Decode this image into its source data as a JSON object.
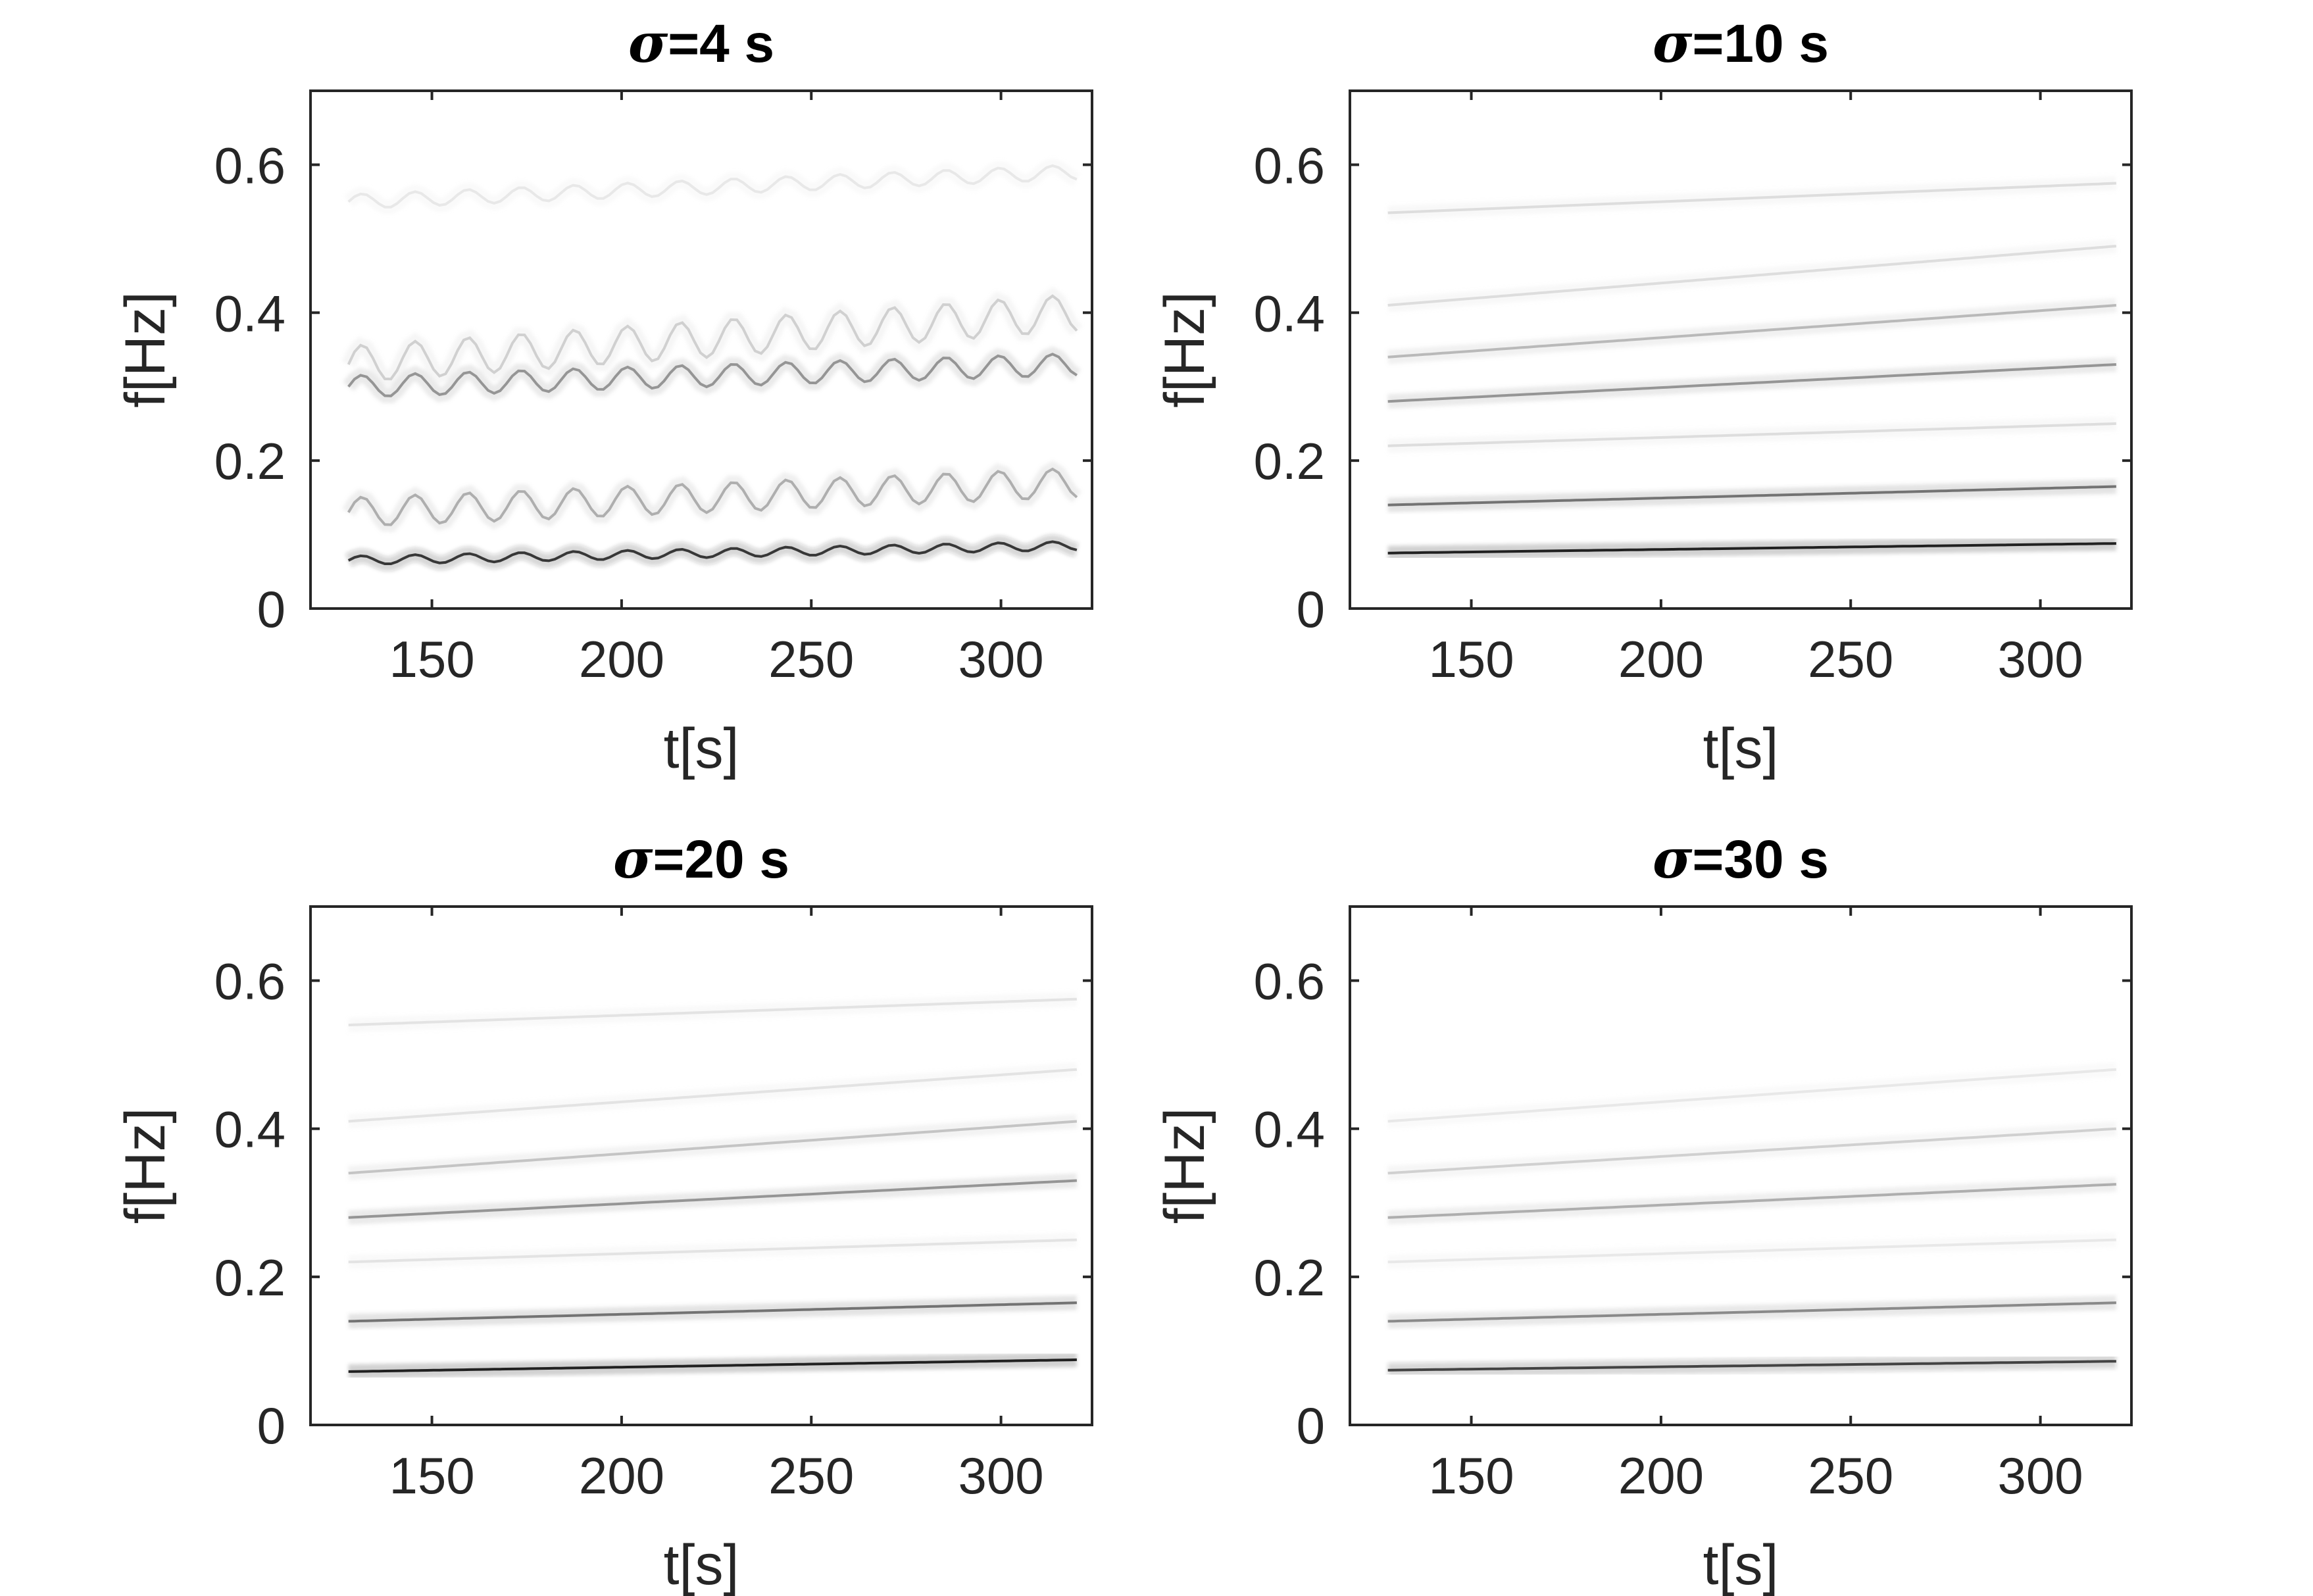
{
  "chart_data": [
    {
      "type": "heatmap",
      "title_symbol": "σ",
      "title_rest": "=4 s",
      "xlabel": "t[s]",
      "ylabel": "f[Hz]",
      "xlim": [
        118,
        324
      ],
      "ylim": [
        0,
        0.7
      ],
      "xticks": [
        "150",
        "200",
        "250",
        "300"
      ],
      "yticks": [
        "0",
        "0.2",
        "0.4",
        "0.6"
      ],
      "colormap": "inverted-gray",
      "ridges": [
        {
          "f_start": 0.065,
          "f_end": 0.085,
          "intensity": 0.85,
          "ripple": 0.006
        },
        {
          "f_start": 0.13,
          "f_end": 0.17,
          "intensity": 0.35,
          "ripple": 0.02
        },
        {
          "f_start": 0.3,
          "f_end": 0.33,
          "intensity": 0.45,
          "ripple": 0.015
        },
        {
          "f_start": 0.33,
          "f_end": 0.4,
          "intensity": 0.2,
          "ripple": 0.025
        },
        {
          "f_start": 0.55,
          "f_end": 0.59,
          "intensity": 0.1,
          "ripple": 0.01
        }
      ]
    },
    {
      "type": "heatmap",
      "title_symbol": "σ",
      "title_rest": "=10 s",
      "xlabel": "t[s]",
      "ylabel": "f[Hz]",
      "xlim": [
        118,
        324
      ],
      "ylim": [
        0,
        0.7
      ],
      "xticks": [
        "150",
        "200",
        "250",
        "300"
      ],
      "yticks": [
        "0",
        "0.2",
        "0.4",
        "0.6"
      ],
      "colormap": "inverted-gray",
      "ridges": [
        {
          "f_start": 0.075,
          "f_end": 0.088,
          "intensity": 0.95,
          "ripple": 0
        },
        {
          "f_start": 0.14,
          "f_end": 0.165,
          "intensity": 0.6,
          "ripple": 0
        },
        {
          "f_start": 0.22,
          "f_end": 0.25,
          "intensity": 0.15,
          "ripple": 0
        },
        {
          "f_start": 0.28,
          "f_end": 0.33,
          "intensity": 0.45,
          "ripple": 0
        },
        {
          "f_start": 0.34,
          "f_end": 0.41,
          "intensity": 0.3,
          "ripple": 0
        },
        {
          "f_start": 0.41,
          "f_end": 0.49,
          "intensity": 0.15,
          "ripple": 0
        },
        {
          "f_start": 0.535,
          "f_end": 0.575,
          "intensity": 0.15,
          "ripple": 0
        }
      ]
    },
    {
      "type": "heatmap",
      "title_symbol": "σ",
      "title_rest": "=20 s",
      "xlabel": "t[s]",
      "ylabel": "f[Hz]",
      "xlim": [
        118,
        324
      ],
      "ylim": [
        0,
        0.7
      ],
      "xticks": [
        "150",
        "200",
        "250",
        "300"
      ],
      "yticks": [
        "0",
        "0.2",
        "0.4",
        "0.6"
      ],
      "colormap": "inverted-gray",
      "ridges": [
        {
          "f_start": 0.072,
          "f_end": 0.088,
          "intensity": 0.95,
          "ripple": 0
        },
        {
          "f_start": 0.14,
          "f_end": 0.165,
          "intensity": 0.6,
          "ripple": 0
        },
        {
          "f_start": 0.22,
          "f_end": 0.25,
          "intensity": 0.12,
          "ripple": 0
        },
        {
          "f_start": 0.28,
          "f_end": 0.33,
          "intensity": 0.45,
          "ripple": 0
        },
        {
          "f_start": 0.34,
          "f_end": 0.41,
          "intensity": 0.25,
          "ripple": 0
        },
        {
          "f_start": 0.41,
          "f_end": 0.48,
          "intensity": 0.12,
          "ripple": 0
        },
        {
          "f_start": 0.54,
          "f_end": 0.575,
          "intensity": 0.12,
          "ripple": 0
        }
      ]
    },
    {
      "type": "heatmap",
      "title_symbol": "σ",
      "title_rest": "=30 s",
      "xlabel": "t[s]",
      "ylabel": "f[Hz]",
      "xlim": [
        118,
        324
      ],
      "ylim": [
        0,
        0.7
      ],
      "xticks": [
        "150",
        "200",
        "250",
        "300"
      ],
      "yticks": [
        "0",
        "0.2",
        "0.4",
        "0.6"
      ],
      "colormap": "inverted-gray",
      "ridges": [
        {
          "f_start": 0.074,
          "f_end": 0.086,
          "intensity": 0.8,
          "ripple": 0
        },
        {
          "f_start": 0.14,
          "f_end": 0.165,
          "intensity": 0.5,
          "ripple": 0
        },
        {
          "f_start": 0.22,
          "f_end": 0.25,
          "intensity": 0.1,
          "ripple": 0
        },
        {
          "f_start": 0.28,
          "f_end": 0.325,
          "intensity": 0.35,
          "ripple": 0
        },
        {
          "f_start": 0.34,
          "f_end": 0.4,
          "intensity": 0.2,
          "ripple": 0
        },
        {
          "f_start": 0.41,
          "f_end": 0.48,
          "intensity": 0.1,
          "ripple": 0
        }
      ]
    }
  ]
}
